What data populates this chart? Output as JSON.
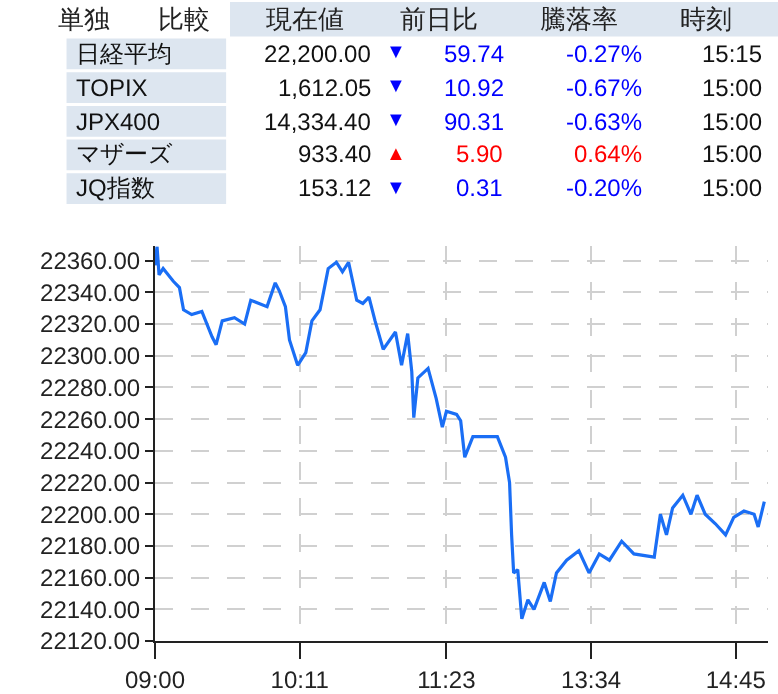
{
  "chart_data": [
    {
      "type": "other",
      "colors": [
        "#0000ff",
        "#0000ff",
        "#0000ff",
        "#ff0000",
        "#0000ff"
      ],
      "annotations": [
        "単独",
        "比較",
        "現在値",
        "前日比",
        "騰落率",
        "時刻",
        "日経平均",
        "22,200.00",
        "▼",
        "59.74",
        "-0.27%",
        "15:15",
        "TOPIX",
        "1,612.05",
        "▼",
        "10.92",
        "-0.67%",
        "15:00",
        "JPX400",
        "14,334.40",
        "▼",
        "90.31",
        "-0.63%",
        "15:00",
        "マザーズ",
        "933.40",
        "▲",
        "5.90",
        "0.64%",
        "15:00",
        "JQ指数",
        "153.12",
        "▼",
        "0.31",
        "-0.20%",
        "15:00"
      ]
    },
    {
      "type": "line",
      "marker": "none",
      "line_style": "solid",
      "grid": true,
      "categories": [
        "09:00",
        null,
        null,
        null,
        null,
        null,
        null,
        null,
        null,
        null,
        null,
        null,
        null,
        null,
        null,
        null,
        null,
        null,
        null,
        null,
        null,
        null,
        null,
        null,
        null,
        null,
        null,
        null,
        null,
        null,
        null,
        null,
        null,
        null,
        null,
        null,
        null,
        null,
        null,
        null,
        null,
        null,
        null,
        null,
        null,
        null,
        null,
        null,
        null,
        null,
        null,
        null,
        null,
        null,
        null,
        null,
        null,
        null,
        null,
        null,
        null,
        null,
        null,
        null,
        null,
        null,
        null,
        null,
        null,
        null,
        null,
        "10:11",
        null,
        null,
        null,
        null,
        null,
        null,
        null,
        null,
        null,
        null,
        null,
        null,
        null,
        null,
        null,
        null,
        null,
        null,
        null,
        null,
        null,
        null,
        null,
        null,
        null,
        null,
        null,
        null,
        null,
        null,
        null,
        null,
        null,
        null,
        null,
        null,
        null,
        null,
        null,
        null,
        null,
        null,
        null,
        null,
        null,
        null,
        null,
        null,
        null,
        null,
        null,
        null,
        null,
        null,
        null,
        null,
        null,
        null,
        null,
        null,
        null,
        null,
        null,
        null,
        null,
        null,
        null,
        null,
        null,
        null,
        null,
        "11:23",
        null,
        null,
        null,
        null,
        null,
        null,
        null,
        null,
        null,
        null,
        null,
        null,
        null,
        null,
        null,
        null,
        null,
        null,
        null,
        null,
        null,
        null,
        null,
        null,
        null,
        null,
        null,
        null,
        null,
        null,
        null,
        null,
        null,
        null,
        null,
        null,
        null,
        null,
        null,
        null,
        null,
        null,
        null,
        null,
        null,
        null,
        null,
        null,
        null,
        null,
        null,
        null,
        null,
        null,
        null,
        null,
        null,
        null,
        null,
        null,
        null,
        null,
        null,
        null,
        null,
        null,
        null,
        null,
        null,
        null,
        "13:34",
        null,
        null,
        null,
        null,
        null,
        null,
        null,
        null,
        null,
        null,
        null,
        null,
        null,
        null,
        null,
        null,
        null,
        null,
        null,
        null,
        null,
        null,
        null,
        null,
        null,
        null,
        null,
        null,
        null,
        null,
        null,
        null,
        null,
        null,
        null,
        null,
        null,
        null,
        null,
        null,
        null,
        null,
        null,
        null,
        null,
        null,
        null,
        null,
        null,
        null,
        null,
        null,
        null,
        null,
        null,
        null,
        null,
        null,
        null,
        null,
        null,
        null,
        null,
        null,
        null,
        null,
        null,
        null,
        null,
        null,
        "14:45",
        null,
        null,
        null,
        null,
        null,
        null,
        null,
        null,
        null,
        null,
        null,
        null,
        null,
        null,
        null,
        null
      ],
      "series": [
        {
          "color": "#1a6ef5",
          "values": [
            22357,
            22369,
            22351,
            null,
            22355,
            null,
            null,
            null,
            null,
            22347,
            null,
            null,
            22343,
            null,
            22329,
            null,
            null,
            null,
            22326,
            null,
            null,
            null,
            null,
            22328,
            null,
            null,
            null,
            null,
            22312,
            null,
            22307,
            null,
            null,
            22322,
            null,
            null,
            null,
            null,
            null,
            22324,
            null,
            null,
            null,
            null,
            22320,
            null,
            null,
            22335,
            null,
            null,
            null,
            null,
            null,
            null,
            null,
            22331,
            null,
            null,
            null,
            22346,
            null,
            22341,
            null,
            null,
            22331,
            null,
            22310,
            null,
            null,
            null,
            22294,
            null,
            null,
            null,
            22302,
            null,
            null,
            22322,
            null,
            null,
            null,
            22329,
            null,
            null,
            null,
            22355,
            null,
            null,
            null,
            22359,
            null,
            null,
            22353,
            null,
            null,
            22359,
            null,
            null,
            null,
            22335,
            null,
            null,
            22333,
            null,
            null,
            22337,
            null,
            null,
            22322,
            null,
            null,
            null,
            22304,
            null,
            null,
            null,
            null,
            null,
            22315,
            null,
            null,
            22294,
            null,
            null,
            22314,
            null,
            22290,
            22261,
            null,
            22286,
            null,
            null,
            null,
            null,
            22292,
            null,
            null,
            null,
            22273,
            null,
            null,
            22255,
            null,
            22265,
            null,
            null,
            null,
            null,
            22263,
            null,
            22259,
            null,
            22236,
            null,
            null,
            null,
            22249,
            null,
            null,
            null,
            null,
            null,
            null,
            22249,
            null,
            null,
            null,
            null,
            22249,
            null,
            null,
            null,
            22236,
            null,
            22220,
            22187,
            22163,
            null,
            22165,
            null,
            22134,
            null,
            null,
            22146,
            null,
            null,
            22140,
            null,
            null,
            null,
            null,
            22157,
            null,
            null,
            22145,
            null,
            null,
            22163,
            null,
            null,
            null,
            null,
            22171,
            null,
            null,
            null,
            null,
            null,
            22177,
            null,
            null,
            null,
            null,
            22163,
            null,
            null,
            null,
            null,
            22175,
            null,
            null,
            null,
            null,
            22171,
            null,
            null,
            null,
            null,
            null,
            22183,
            null,
            null,
            null,
            null,
            null,
            22175,
            null,
            null,
            null,
            null,
            null,
            null,
            null,
            null,
            null,
            22173,
            null,
            null,
            22200,
            null,
            null,
            22187,
            null,
            null,
            22204,
            null,
            null,
            null,
            null,
            22212,
            null,
            null,
            null,
            22200,
            null,
            null,
            22212,
            null,
            null,
            null,
            22200,
            null,
            null,
            null,
            null,
            22194,
            null,
            null,
            null,
            null,
            22187,
            null,
            null,
            null,
            22198,
            null,
            null,
            null,
            null,
            22202,
            null,
            null,
            null,
            null,
            22200,
            null,
            22192,
            null,
            null,
            22208,
            null,
            null
          ]
        }
      ],
      "ylim": [
        22120,
        22369
      ],
      "yticks": [
        {
          "value": 22120,
          "label": "22120.00"
        },
        {
          "value": 22140,
          "label": "22140.00"
        },
        {
          "value": 22160,
          "label": "22160.00"
        },
        {
          "value": 22180,
          "label": "22180.00"
        },
        {
          "value": 22200,
          "label": "22200.00"
        },
        {
          "value": 22220,
          "label": "22220.00"
        },
        {
          "value": 22240,
          "label": "22240.00"
        },
        {
          "value": 22260,
          "label": "22260.00"
        },
        {
          "value": 22280,
          "label": "22280.00"
        },
        {
          "value": 22300,
          "label": "22300.00"
        },
        {
          "value": 22320,
          "label": "22320.00"
        },
        {
          "value": 22340,
          "label": "22340.00"
        },
        {
          "value": 22360,
          "label": "22360.00"
        }
      ]
    }
  ]
}
